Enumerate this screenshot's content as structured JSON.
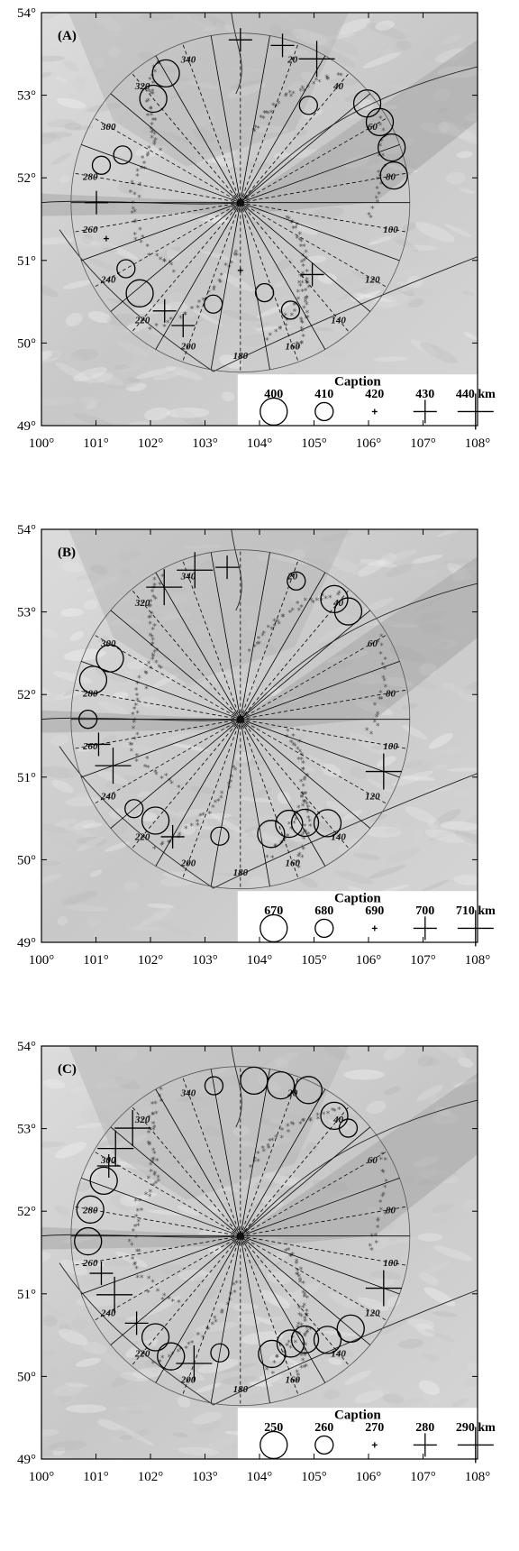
{
  "panels": [
    {
      "label": "(A)",
      "caption_title": "Caption",
      "depths": [
        "400",
        "410",
        "420",
        "430",
        "440 km"
      ],
      "symbols": [
        "circle-large",
        "circle-small",
        "plus-small",
        "cross-medium",
        "cross-large"
      ]
    },
    {
      "label": "(B)",
      "caption_title": "Caption",
      "depths": [
        "670",
        "680",
        "690",
        "700",
        "710 km"
      ],
      "symbols": [
        "circle-large",
        "circle-small",
        "plus-small",
        "cross-medium",
        "cross-large"
      ]
    },
    {
      "label": "(C)",
      "caption_title": "Caption",
      "depths": [
        "250",
        "260",
        "270",
        "280",
        "290 km"
      ],
      "symbols": [
        "circle-large",
        "circle-small",
        "plus-small",
        "cross-medium",
        "cross-large"
      ]
    }
  ],
  "axes": {
    "x_ticks": [
      "100°",
      "101°",
      "102°",
      "103°",
      "104°",
      "105°",
      "106°",
      "107°",
      "108°"
    ],
    "y_ticks": [
      "54°",
      "53°",
      "52°",
      "51°",
      "50°",
      "49°"
    ]
  },
  "azimuth_labels": [
    "20",
    "40",
    "60",
    "80",
    "100",
    "120",
    "140",
    "160",
    "180",
    "200",
    "220",
    "240",
    "260",
    "280",
    "300",
    "320",
    "340"
  ],
  "map": {
    "extent": {
      "lon": [
        100,
        108
      ],
      "lat": [
        49,
        54
      ]
    },
    "center": {
      "lon": 103.65,
      "lat": 51.7
    },
    "station_icon": "triangle-icon",
    "event_marker_color": "#555555"
  }
}
